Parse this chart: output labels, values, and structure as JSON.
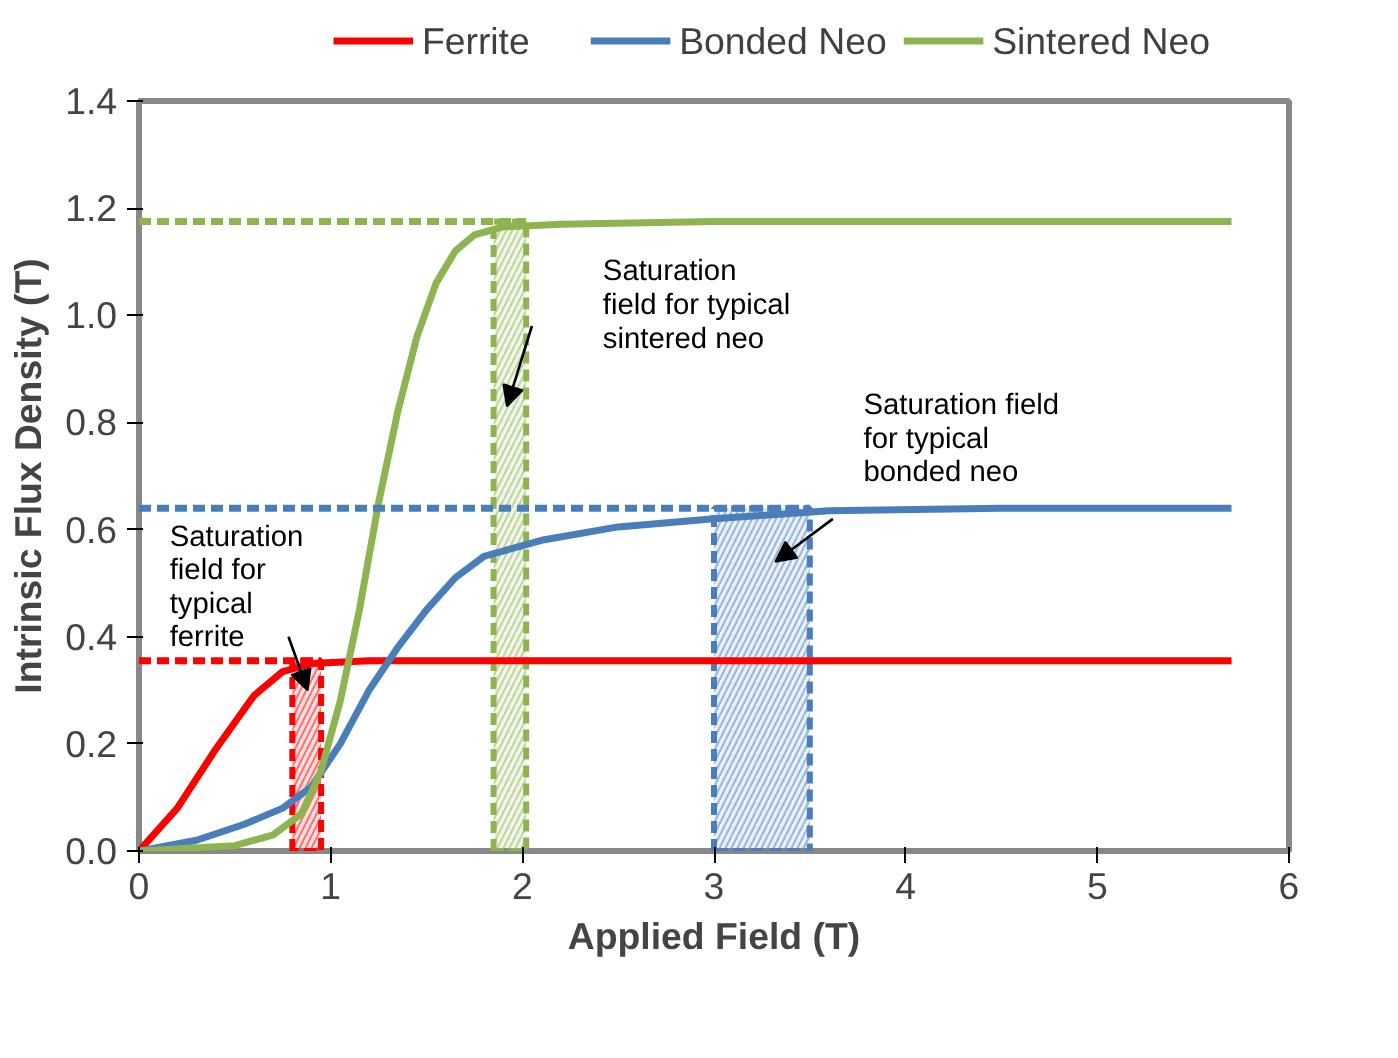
{
  "chart_data": {
    "type": "line",
    "xlabel": "Applied Field (T)",
    "ylabel": "Intrinsic Flux Density (T)",
    "xlim": [
      0,
      6
    ],
    "ylim": [
      0,
      1.4
    ],
    "xticks": [
      0,
      1,
      2,
      3,
      4,
      5,
      6
    ],
    "yticks": [
      {
        "value": 0,
        "label": "0.0"
      },
      {
        "value": 0.2,
        "label": "0.2"
      },
      {
        "value": 0.4,
        "label": "0.4"
      },
      {
        "value": 0.6,
        "label": "0.6"
      },
      {
        "value": 0.8,
        "label": "0.8"
      },
      {
        "value": 1.0,
        "label": "1.0"
      },
      {
        "value": 1.2,
        "label": "1.2"
      },
      {
        "value": 1.4,
        "label": "1.4"
      }
    ],
    "grid": false,
    "legend": "top",
    "marker": "none",
    "series": [
      {
        "name": "Ferrite",
        "color": "#ff0000",
        "x": [
          0,
          0.2,
          0.4,
          0.6,
          0.75,
          0.9,
          1.2,
          2,
          3,
          4,
          5,
          5.7
        ],
        "values": [
          0,
          0.08,
          0.19,
          0.29,
          0.335,
          0.35,
          0.355,
          0.355,
          0.355,
          0.355,
          0.355,
          0.355
        ]
      },
      {
        "name": "Bonded Neo",
        "color": "#4a7ebb",
        "x": [
          0,
          0.3,
          0.55,
          0.75,
          0.9,
          1.05,
          1.2,
          1.35,
          1.5,
          1.65,
          1.8,
          2.1,
          2.5,
          3,
          3.6,
          4.5,
          5.7
        ],
        "values": [
          0,
          0.02,
          0.05,
          0.08,
          0.12,
          0.2,
          0.3,
          0.38,
          0.45,
          0.51,
          0.55,
          0.58,
          0.605,
          0.62,
          0.635,
          0.64,
          0.64
        ]
      },
      {
        "name": "Sintered Neo",
        "color": "#8db451",
        "x": [
          0,
          0.5,
          0.7,
          0.85,
          0.95,
          1.05,
          1.15,
          1.25,
          1.35,
          1.45,
          1.55,
          1.65,
          1.75,
          1.9,
          2.2,
          3,
          4,
          5,
          5.7
        ],
        "values": [
          0,
          0.01,
          0.03,
          0.07,
          0.15,
          0.28,
          0.45,
          0.65,
          0.82,
          0.96,
          1.06,
          1.12,
          1.15,
          1.165,
          1.17,
          1.175,
          1.175,
          1.175,
          1.175
        ]
      },
      {
        "type": "line",
        "line_style": "dashed",
        "color": "#ff0000",
        "x": [
          0,
          0.95
        ],
        "values": [
          0.355,
          0.355
        ]
      },
      {
        "type": "line",
        "line_style": "dashed",
        "color": "#4a7ebb",
        "x": [
          0,
          3.5
        ],
        "values": [
          0.64,
          0.64
        ]
      },
      {
        "type": "line",
        "line_style": "dashed",
        "color": "#8db451",
        "x": [
          0,
          2.02
        ],
        "values": [
          1.175,
          1.175
        ]
      },
      {
        "type": "area",
        "line_style": "dashed",
        "color": "#ff0000",
        "x": [
          0.8,
          0.95
        ],
        "values": [
          0.355,
          0.355
        ]
      },
      {
        "type": "area",
        "line_style": "dashed",
        "color": "#4a7ebb",
        "x": [
          3.0,
          3.5
        ],
        "values": [
          0.64,
          0.64
        ]
      },
      {
        "type": "area",
        "line_style": "dashed",
        "color": "#8db451",
        "x": [
          1.85,
          2.02
        ],
        "values": [
          1.175,
          1.175
        ]
      }
    ],
    "annotations": [
      "Saturation\nfield for\ntypical\nferrite",
      "Saturation\nfield for typical\nsintered neo",
      "Saturation field\nfor typical\nbonded neo"
    ]
  }
}
